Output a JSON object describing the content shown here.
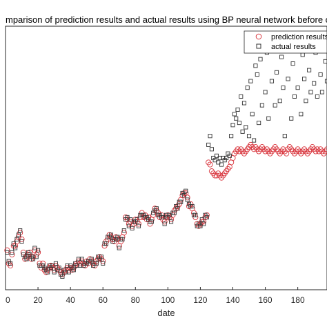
{
  "chart_data": {
    "type": "scatter",
    "title": "mparison of prediction results and actual results using BP neural network before optim",
    "xlabel": "date",
    "ylabel": "",
    "xlim": [
      0,
      198
    ],
    "xticks": [
      0,
      20,
      40,
      60,
      80,
      100,
      120,
      140,
      160,
      180
    ],
    "ylim": [
      0,
      1.2
    ],
    "grid": false,
    "legend_position": "top-right",
    "series": [
      {
        "name": "prediction results",
        "marker": "circle",
        "color": "#d9363e",
        "x": [
          1,
          2,
          3,
          4,
          5,
          6,
          7,
          8,
          9,
          10,
          11,
          12,
          13,
          14,
          15,
          16,
          17,
          18,
          19,
          20,
          21,
          22,
          23,
          24,
          25,
          26,
          27,
          28,
          29,
          30,
          31,
          32,
          33,
          34,
          35,
          36,
          37,
          38,
          39,
          40,
          41,
          42,
          43,
          44,
          45,
          46,
          47,
          48,
          49,
          50,
          51,
          52,
          53,
          54,
          55,
          56,
          57,
          58,
          59,
          60,
          61,
          62,
          63,
          64,
          65,
          66,
          67,
          68,
          69,
          70,
          71,
          72,
          73,
          74,
          75,
          76,
          77,
          78,
          79,
          80,
          81,
          82,
          83,
          84,
          85,
          86,
          87,
          88,
          89,
          90,
          91,
          92,
          93,
          94,
          95,
          96,
          97,
          98,
          99,
          100,
          101,
          102,
          103,
          104,
          105,
          106,
          107,
          108,
          109,
          110,
          111,
          112,
          113,
          114,
          115,
          116,
          117,
          118,
          119,
          120,
          121,
          122,
          123,
          124,
          125,
          126,
          127,
          128,
          129,
          130,
          131,
          132,
          133,
          134,
          135,
          136,
          137,
          138,
          139,
          140,
          141,
          142,
          143,
          144,
          145,
          146,
          147,
          148,
          149,
          150,
          151,
          152,
          153,
          154,
          155,
          156,
          157,
          158,
          159,
          160,
          161,
          162,
          163,
          164,
          165,
          166,
          167,
          168,
          169,
          170,
          171,
          172,
          173,
          174,
          175,
          176,
          177,
          178,
          179,
          180,
          181,
          182,
          183,
          184,
          185,
          186,
          187,
          188,
          189,
          190,
          191,
          192,
          193,
          194,
          195,
          196,
          197,
          198
        ],
        "y": [
          0.18,
          0.12,
          0.11,
          0.16,
          0.2,
          0.2,
          0.22,
          0.24,
          0.26,
          0.23,
          0.17,
          0.14,
          0.15,
          0.16,
          0.17,
          0.14,
          0.15,
          0.18,
          0.16,
          0.17,
          0.12,
          0.1,
          0.12,
          0.09,
          0.08,
          0.09,
          0.1,
          0.11,
          0.1,
          0.09,
          0.11,
          0.1,
          0.09,
          0.08,
          0.07,
          0.08,
          0.09,
          0.1,
          0.09,
          0.1,
          0.09,
          0.1,
          0.11,
          0.12,
          0.13,
          0.12,
          0.13,
          0.12,
          0.11,
          0.13,
          0.12,
          0.14,
          0.13,
          0.12,
          0.11,
          0.13,
          0.14,
          0.15,
          0.14,
          0.13,
          0.2,
          0.22,
          0.23,
          0.25,
          0.24,
          0.23,
          0.22,
          0.24,
          0.23,
          0.2,
          0.22,
          0.24,
          0.26,
          0.33,
          0.32,
          0.3,
          0.31,
          0.29,
          0.3,
          0.32,
          0.31,
          0.3,
          0.33,
          0.35,
          0.33,
          0.34,
          0.32,
          0.33,
          0.3,
          0.32,
          0.34,
          0.37,
          0.36,
          0.35,
          0.33,
          0.34,
          0.32,
          0.31,
          0.33,
          0.34,
          0.33,
          0.32,
          0.34,
          0.36,
          0.37,
          0.38,
          0.39,
          0.41,
          0.43,
          0.44,
          0.44,
          0.42,
          0.38,
          0.39,
          0.37,
          0.35,
          0.33,
          0.3,
          0.29,
          0.3,
          0.31,
          0.31,
          0.33,
          0.34,
          0.58,
          0.57,
          0.54,
          0.53,
          0.52,
          0.52,
          0.53,
          0.52,
          0.51,
          0.52,
          0.53,
          0.54,
          0.55,
          0.56,
          0.58,
          0.6,
          0.62,
          0.63,
          0.64,
          0.63,
          0.64,
          0.63,
          0.62,
          0.63,
          0.64,
          0.65,
          0.66,
          0.65,
          0.64,
          0.65,
          0.64,
          0.63,
          0.64,
          0.65,
          0.64,
          0.63,
          0.64,
          0.63,
          0.62,
          0.63,
          0.64,
          0.65,
          0.64,
          0.63,
          0.62,
          0.63,
          0.64,
          0.63,
          0.62,
          0.64,
          0.65,
          0.64,
          0.63,
          0.62,
          0.63,
          0.64,
          0.63,
          0.62,
          0.63,
          0.64,
          0.63,
          0.62,
          0.63,
          0.64,
          0.65,
          0.64,
          0.63,
          0.64,
          0.63,
          0.64,
          0.63,
          0.62,
          0.63,
          0.64
        ]
      },
      {
        "name": "actual results",
        "marker": "square",
        "color": "#333333",
        "x": [
          1,
          2,
          3,
          4,
          5,
          6,
          7,
          8,
          9,
          10,
          11,
          12,
          13,
          14,
          15,
          16,
          17,
          18,
          19,
          20,
          21,
          22,
          23,
          24,
          25,
          26,
          27,
          28,
          29,
          30,
          31,
          32,
          33,
          34,
          35,
          36,
          37,
          38,
          39,
          40,
          41,
          42,
          43,
          44,
          45,
          46,
          47,
          48,
          49,
          50,
          51,
          52,
          53,
          54,
          55,
          56,
          57,
          58,
          59,
          60,
          61,
          62,
          63,
          64,
          65,
          66,
          67,
          68,
          69,
          70,
          71,
          72,
          73,
          74,
          75,
          76,
          77,
          78,
          79,
          80,
          81,
          82,
          83,
          84,
          85,
          86,
          87,
          88,
          89,
          90,
          91,
          92,
          93,
          94,
          95,
          96,
          97,
          98,
          99,
          100,
          101,
          102,
          103,
          104,
          105,
          106,
          107,
          108,
          109,
          110,
          111,
          112,
          113,
          114,
          115,
          116,
          117,
          118,
          119,
          120,
          121,
          122,
          123,
          124,
          125,
          126,
          127,
          128,
          129,
          130,
          131,
          132,
          133,
          134,
          135,
          136,
          137,
          138,
          139,
          140,
          141,
          142,
          143,
          144,
          145,
          146,
          147,
          148,
          149,
          150,
          151,
          152,
          153,
          154,
          155,
          156,
          157,
          158,
          159,
          160,
          161,
          162,
          163,
          164,
          165,
          166,
          167,
          168,
          169,
          170,
          171,
          172,
          173,
          174,
          175,
          176,
          177,
          178,
          179,
          180,
          181,
          182,
          183,
          184,
          185,
          186,
          187,
          188,
          189,
          190,
          191,
          192,
          193,
          194,
          195,
          196,
          197,
          198
        ],
        "y": [
          0.17,
          0.13,
          0.12,
          0.17,
          0.21,
          0.19,
          0.23,
          0.25,
          0.27,
          0.22,
          0.16,
          0.15,
          0.14,
          0.17,
          0.16,
          0.15,
          0.14,
          0.19,
          0.15,
          0.18,
          0.11,
          0.11,
          0.11,
          0.1,
          0.09,
          0.08,
          0.11,
          0.1,
          0.11,
          0.08,
          0.12,
          0.09,
          0.1,
          0.07,
          0.06,
          0.09,
          0.08,
          0.11,
          0.08,
          0.11,
          0.1,
          0.09,
          0.12,
          0.11,
          0.14,
          0.11,
          0.14,
          0.11,
          0.12,
          0.12,
          0.13,
          0.13,
          0.14,
          0.11,
          0.12,
          0.12,
          0.15,
          0.14,
          0.15,
          0.12,
          0.21,
          0.21,
          0.24,
          0.24,
          0.25,
          0.22,
          0.23,
          0.23,
          0.24,
          0.19,
          0.23,
          0.23,
          0.27,
          0.32,
          0.33,
          0.29,
          0.32,
          0.28,
          0.31,
          0.31,
          0.32,
          0.29,
          0.34,
          0.34,
          0.34,
          0.33,
          0.33,
          0.32,
          0.31,
          0.31,
          0.35,
          0.36,
          0.37,
          0.34,
          0.34,
          0.33,
          0.33,
          0.3,
          0.34,
          0.33,
          0.34,
          0.31,
          0.35,
          0.35,
          0.38,
          0.37,
          0.4,
          0.4,
          0.44,
          0.43,
          0.45,
          0.41,
          0.39,
          0.38,
          0.38,
          0.34,
          0.34,
          0.29,
          0.3,
          0.29,
          0.32,
          0.3,
          0.34,
          0.33,
          0.66,
          0.7,
          0.64,
          0.6,
          0.59,
          0.61,
          0.58,
          0.6,
          0.57,
          0.6,
          0.59,
          0.6,
          0.62,
          0.61,
          0.7,
          0.75,
          0.8,
          0.78,
          0.82,
          0.76,
          0.88,
          0.72,
          0.85,
          0.74,
          0.92,
          0.7,
          0.95,
          0.8,
          0.68,
          1.02,
          0.98,
          0.76,
          1.05,
          0.84,
          1.12,
          0.9,
          1.08,
          0.78,
          1.15,
          0.95,
          1.1,
          0.84,
          0.99,
          1.13,
          0.86,
          1.06,
          0.92,
          0.7,
          1.1,
          0.96,
          1.14,
          0.78,
          1.03,
          0.88,
          1.16,
          0.92,
          1.12,
          0.8,
          1.07,
          0.96,
          0.86,
          1.15,
          1.0,
          0.9,
          1.12,
          0.94,
          1.08,
          0.88,
          1.15,
          0.98,
          0.9,
          1.1,
          1.04,
          0.95
        ]
      }
    ]
  }
}
